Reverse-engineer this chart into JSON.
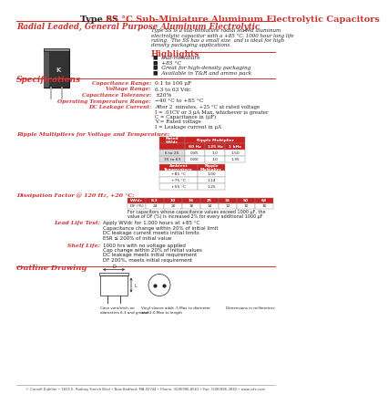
{
  "title_ss": "Type SS",
  "title_rest": " 85 °C Sub-Miniature Aluminum Electrolytic Capacitors",
  "subtitle": "Radial Leaded, General Purpose Aluminum Electrolytic",
  "description": "Type SS is a sub-miniature radial leaded aluminum\nelectrolytic capacitor with a +85 °C, 1000 hour long life\nrating.  The SS has a small size  and is ideal for high\ndensity packaging applications.",
  "highlights_title": "Highlights",
  "highlights": [
    "Sub-miniature",
    "+85 °C",
    "Great for high-density packaging",
    "Available in T&R and ammo pack"
  ],
  "specs_title": "Specifications",
  "specs": [
    [
      "Capacitance Range:",
      "0.1 to 100 μF"
    ],
    [
      "Voltage Range:",
      "6.3 to 63 Vdc"
    ],
    [
      "Capacitance Tolerance:",
      "±20%"
    ],
    [
      "Operating Temperature Range:",
      "−40 °C to +85 °C"
    ],
    [
      "DC Leakage Current:",
      "After 2  minutes, +25 °C at rated voltage\nI = .01CV or 3 μA Max, whichever is greater\nC = Capacitance in (μF)\nV = Rated voltage\nI = Leakage current in μA"
    ]
  ],
  "ripple_title": "Ripple Multipliers for Voltage and Temperature:",
  "ripple_headers": [
    "Rated\nWVdc",
    "Ripple Multiplier",
    "",
    ""
  ],
  "ripple_subheaders": [
    "",
    "60 Hz",
    "125 Hz",
    "1 kHz"
  ],
  "ripple_rows": [
    [
      "6 to 25",
      "0.85",
      "1.0",
      "1.50"
    ],
    [
      "35 to 63",
      "0.80",
      "1.0",
      "1.35"
    ]
  ],
  "temp_headers": [
    "Ambient\nTemperature",
    "Ripple\nMultiplier"
  ],
  "temp_rows": [
    [
      "+85 °C",
      "1.00"
    ],
    [
      "+75 °C",
      "1.14"
    ],
    [
      "+55 °C",
      "1.25"
    ]
  ],
  "dissipation_title": "Dissipation Factor @ 120 Hz, +20 °C:",
  "dissipation_headers": [
    "WVdc",
    "6.3",
    "10",
    "16",
    "25",
    "35",
    "50",
    "63"
  ],
  "dissipation_rows": [
    [
      "DF (%)",
      "24",
      "20",
      "16",
      "14",
      "12",
      "10",
      "10"
    ]
  ],
  "dissipation_note": "For capacitors whose capacitance values exceed 1000 μF, the\nvalue of DF (%) is increased 2% for every additional 1000 μF",
  "lead_life_title": "Lead Life Test:",
  "lead_life_lines": [
    "Apply WVdc for 1,000 hours at +85 °C",
    "Capacitance change within 20% of initial limit",
    "DC leakage current meets initial limits",
    "ESR ≤ 200% of initial value"
  ],
  "shelf_life_title": "Shelf Life:",
  "shelf_life_lines": [
    "1000 hrs with no voltage applied",
    "Cap change within 20% of initial values",
    "DC leakage meets initial requirement",
    "DF 200%, meets initial requirement"
  ],
  "outline_title": "Outline Drawing",
  "footer": "© Cornell Dubilier • 1605 E. Rodney French Blvd • New Bedford, MA 02744 • Phone: (508)996-8561 • Fax: (508)996-3830 • www.cde.com",
  "red": "#cc3333",
  "dark": "#222222",
  "table_red": "#cc2222",
  "white": "#ffffff",
  "gray_line": "#aaaaaa"
}
